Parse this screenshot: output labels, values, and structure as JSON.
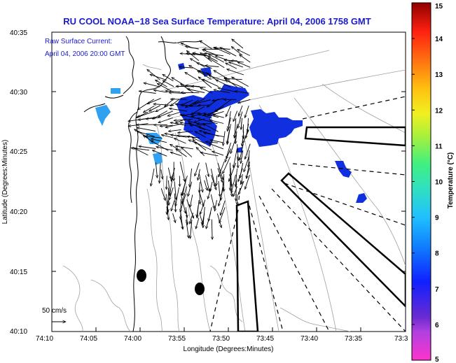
{
  "title": "RU COOL  NOAA−18  Sea Surface Temperature:  April 04, 2006 1758 GMT",
  "legend": {
    "line1": "Raw Surface Current:",
    "line2": "April 04, 2006 20:00 GMT",
    "scale_label": "50 cm/s"
  },
  "x_axis": {
    "label": "Longitude (Degrees:Minutes)",
    "ticks": [
      "74:10",
      "74:05",
      "74:00",
      "73:55",
      "73:50",
      "73:45",
      "73:40",
      "73:35",
      "73:3"
    ]
  },
  "y_axis": {
    "label": "Latitude (Degrees:Minutes)",
    "ticks": [
      "40:35",
      "40:30",
      "40:25",
      "40:20",
      "40:15",
      "40:10"
    ]
  },
  "colorbar": {
    "label": "Temperature (°C)",
    "ticks": [
      "15",
      "14",
      "13",
      "12",
      "11",
      "10",
      "9",
      "8",
      "7",
      "6",
      "5"
    ],
    "min": 5,
    "max": 15,
    "stops": [
      "#ff33cc",
      "#6a2bd0",
      "#1020ff",
      "#1080ff",
      "#20c0ff",
      "#30e0c0",
      "#40f080",
      "#a0f040",
      "#f0f020",
      "#ffc010",
      "#ff7010",
      "#ff2010",
      "#d00010",
      "#900000"
    ]
  },
  "colors": {
    "title": "#1a1ad0",
    "sst_blue": "#1030e0",
    "sst_light_blue": "#30a0f0",
    "bathymetry": "#a0a0a0"
  }
}
